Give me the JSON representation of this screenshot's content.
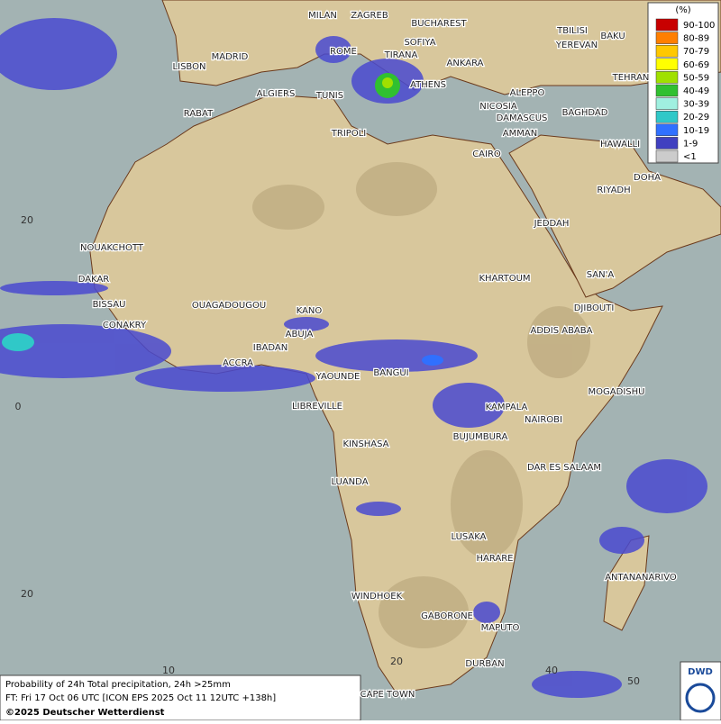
{
  "map": {
    "legend": {
      "title": "(%)",
      "items": [
        {
          "label": "90-100",
          "color": "#c80000"
        },
        {
          "label": "80-89",
          "color": "#ff7f00"
        },
        {
          "label": "70-79",
          "color": "#ffc800"
        },
        {
          "label": "60-69",
          "color": "#ffff00"
        },
        {
          "label": "50-59",
          "color": "#a0e000"
        },
        {
          "label": "40-49",
          "color": "#30c030"
        },
        {
          "label": "30-39",
          "color": "#a0f0e0"
        },
        {
          "label": "20-29",
          "color": "#30c8c8"
        },
        {
          "label": "10-19",
          "color": "#3070ff"
        },
        {
          "label": "1-9",
          "color": "#4040c0"
        },
        {
          "label": "<1",
          "color": "#cccccc"
        }
      ]
    },
    "cities": [
      "MILAN",
      "ZAGREB",
      "BUCHAREST",
      "TBILISI",
      "BAKU",
      "ROME",
      "SOFIYA",
      "YEREVAN",
      "MADRID",
      "TIRANA",
      "ANKARA",
      "LISBON",
      "TEHRAN",
      "ALGIERS",
      "TUNIS",
      "ATHENS",
      "ALEPPO",
      "RABAT",
      "NICOSIA",
      "BAGHDAD",
      "DAMASCUS",
      "TRIPOLI",
      "AMMAN",
      "HAWALLI",
      "CAIRO",
      "DOHA",
      "RIYADH",
      "JEDDAH",
      "NOUAKCHOTT",
      "KHARTOUM",
      "SAN'A",
      "DAKAR",
      "BISSAU",
      "OUAGADOUGOU",
      "DJIBOUTI",
      "KANO",
      "CONAKRY",
      "ABUJA",
      "ADDIS ABABA",
      "IBADAN",
      "ACCRA",
      "YAOUNDE",
      "BANGUI",
      "MOGADISHU",
      "LIBREVILLE",
      "KAMPALA",
      "NAIROBI",
      "BUJUMBURA",
      "KINSHASA",
      "DAR ES SALAAM",
      "LUANDA",
      "LUSAKA",
      "HARARE",
      "ANTANANARIVO",
      "WINDHOEK",
      "GABORONE",
      "MAPUTO",
      "DURBAN",
      "CAPE TOWN"
    ],
    "grid_labels": [
      "20",
      "0",
      "20",
      "10",
      "20",
      "40",
      "50"
    ],
    "footer": {
      "line1": "Probability of 24h Total precipitation, 24h >25mm",
      "line2": "FT: Fri 17 Oct 06 UTC [ICON EPS 2025 Oct 11 12UTC +138h]",
      "copyright": "©2025 Deutscher Wetterdienst"
    },
    "logo": "DWD"
  }
}
